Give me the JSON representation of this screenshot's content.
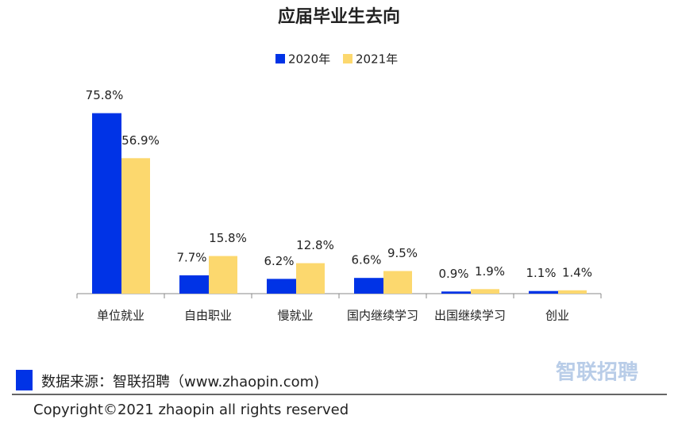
{
  "chart_data": {
    "type": "bar",
    "title": "应届毕业生去向",
    "categories": [
      "单位就业",
      "自由职业",
      "慢就业",
      "国内继续学习",
      "出国继续学习",
      "创业"
    ],
    "series": [
      {
        "name": "2020年",
        "color": "#0033e6",
        "values": [
          75.8,
          7.7,
          6.2,
          6.6,
          0.9,
          1.1
        ],
        "value_labels": [
          "75.8%",
          "7.7%",
          "6.2%",
          "6.6%",
          "0.9%",
          "1.1%"
        ]
      },
      {
        "name": "2021年",
        "color": "#fcd86e",
        "values": [
          56.9,
          15.8,
          12.8,
          9.5,
          1.9,
          1.4
        ],
        "value_labels": [
          "56.9%",
          "15.8%",
          "12.8%",
          "9.5%",
          "1.9%",
          "1.4%"
        ]
      }
    ],
    "source_note": "数据来源：智联招聘（www.zhaopin.com)",
    "copyright": "Copyright©2021 zhaopin all rights reserved",
    "logo": "智联招聘"
  }
}
